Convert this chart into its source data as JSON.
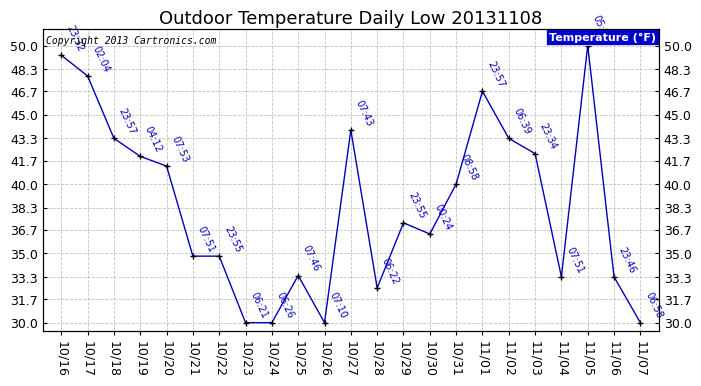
{
  "title": "Outdoor Temperature Daily Low 20131108",
  "copyright": "Copyright 2013 Cartronics.com",
  "legend_label": "Temperature (°F)",
  "x_labels": [
    "10/16",
    "10/17",
    "10/18",
    "10/19",
    "10/20",
    "10/21",
    "10/22",
    "10/23",
    "10/24",
    "10/25",
    "10/26",
    "10/27",
    "10/28",
    "10/29",
    "10/30",
    "10/31",
    "11/01",
    "11/02",
    "11/03",
    "11/04",
    "11/05",
    "11/06",
    "11/07"
  ],
  "temperatures": [
    49.3,
    47.8,
    43.3,
    42.0,
    41.3,
    34.8,
    34.8,
    30.0,
    30.0,
    33.4,
    30.0,
    43.9,
    32.5,
    37.2,
    36.4,
    40.0,
    46.7,
    43.3,
    42.2,
    33.3,
    50.0,
    33.3,
    30.0
  ],
  "time_labels": [
    "23:32",
    "02:04",
    "23:57",
    "04:12",
    "07:53",
    "07:51",
    "23:55",
    "06:21",
    "06:26",
    "07:46",
    "07:10",
    "07:43",
    "06:22",
    "23:55",
    "00:24",
    "08:58",
    "23:57",
    "06:39",
    "23:34",
    "07:51",
    "05:17",
    "23:46",
    "06:58"
  ],
  "ylim": [
    29.4,
    51.2
  ],
  "yticks": [
    30.0,
    31.7,
    33.3,
    35.0,
    36.7,
    38.3,
    40.0,
    41.7,
    43.3,
    45.0,
    46.7,
    48.3,
    50.0
  ],
  "line_color": "#0000BB",
  "marker_color": "#000000",
  "bg_color": "#ffffff",
  "grid_color": "#bbbbbb",
  "title_fontsize": 13,
  "tick_fontsize": 9,
  "annot_fontsize": 7,
  "legend_bg": "#0000CC",
  "legend_fg": "#ffffff",
  "fig_width": 6.9,
  "fig_height": 3.75
}
